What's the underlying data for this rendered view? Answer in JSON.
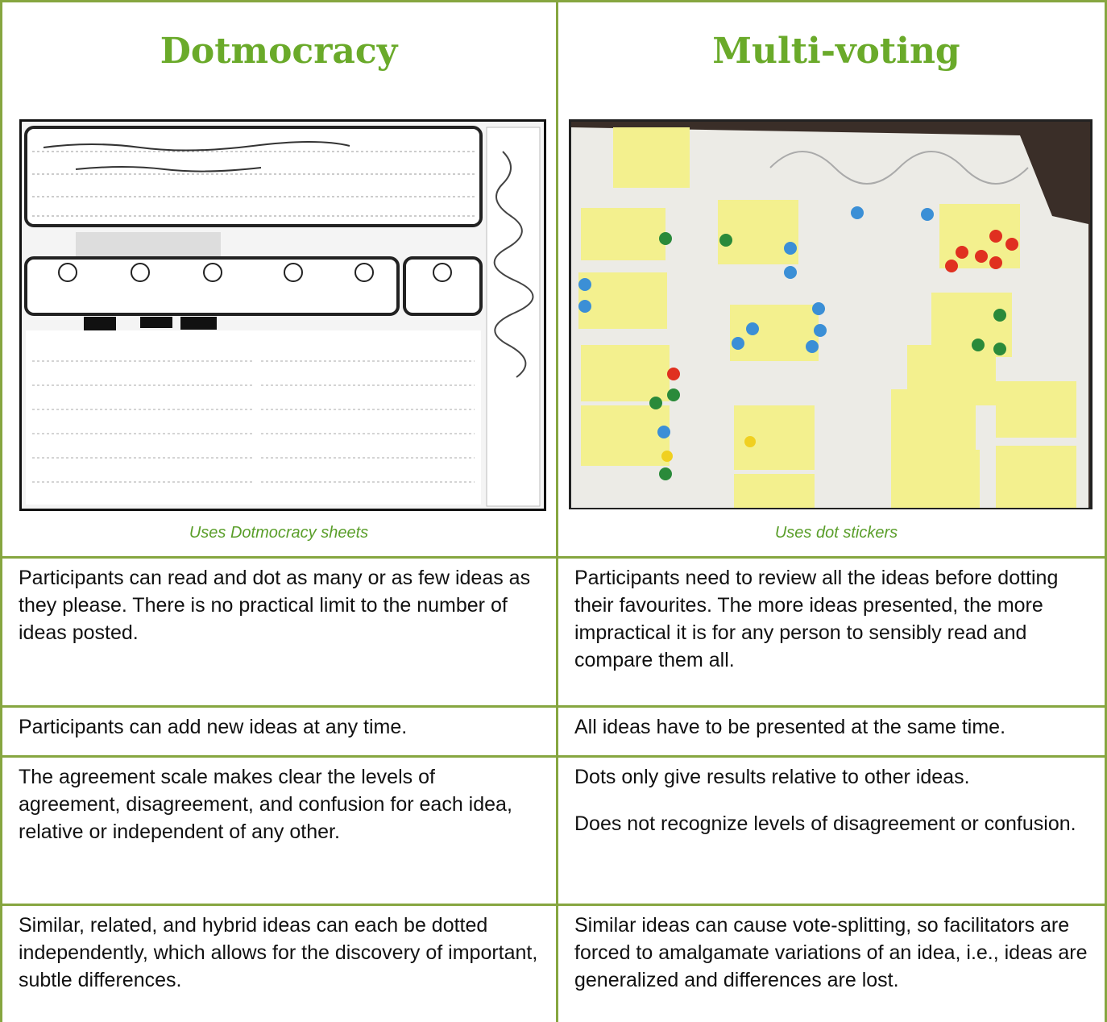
{
  "header": {
    "columns": [
      {
        "title": "Dotmocracy",
        "caption": "Uses Dotmocracy sheets"
      },
      {
        "title": "Multi-voting",
        "caption": "Uses dot stickers"
      }
    ]
  },
  "table": {
    "rows": [
      [
        [
          "Participants can read and dot as many or as few ideas as they please. There is no practical limit to the number of ideas posted."
        ],
        [
          "Participants need to review all the ideas before dotting their favourites. The more ideas presented, the more impractical it is for any person to sensibly read and compare them all."
        ]
      ],
      [
        [
          "Participants can add new ideas at any time."
        ],
        [
          "All ideas have to be presented at the same time."
        ]
      ],
      [
        [
          "The agreement scale makes clear the levels of agreement, disagreement, and confusion for each idea, relative or independent of any other."
        ],
        [
          "Dots only give results relative to other ideas.",
          "Does not recognize levels of disagreement or confusion."
        ]
      ],
      [
        [
          "Similar, related, and hybrid ideas can each be dotted independently, which allows for the discovery of important, subtle differences."
        ],
        [
          "Similar ideas can cause vote-splitting, so facilitators are forced to amalgamate variations of an idea, i.e., ideas are generalized and differences are lost."
        ]
      ]
    ]
  }
}
